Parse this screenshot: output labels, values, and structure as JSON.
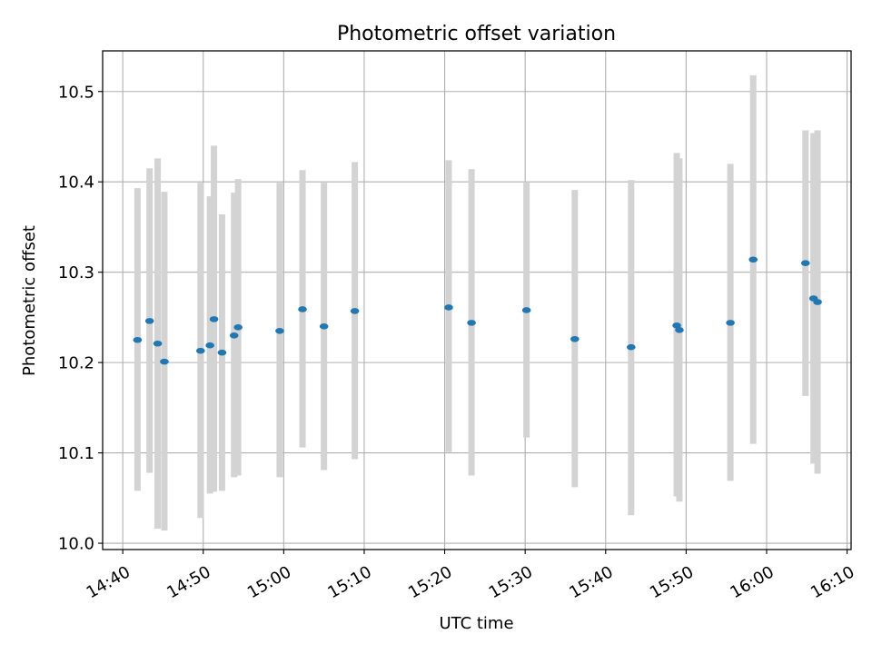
{
  "chart_data": {
    "type": "scatter",
    "title": "Photometric offset variation",
    "xlabel": "UTC time",
    "ylabel": "Photometric offset",
    "x_ticks": [
      "14:40",
      "14:50",
      "15:00",
      "15:10",
      "15:20",
      "15:30",
      "15:40",
      "15:50",
      "16:00",
      "16:10"
    ],
    "y_ticks": [
      "10.0",
      "10.1",
      "10.2",
      "10.3",
      "10.4",
      "10.5"
    ],
    "xlim": [
      "14:37:30",
      "16:10:30"
    ],
    "ylim": [
      9.993,
      10.545
    ],
    "grid": true,
    "marker_color": "#1f77b4",
    "errorbar_color": "#d3d3d3",
    "points": [
      {
        "x": "14:41:50",
        "y": 10.225,
        "lo": 10.058,
        "hi": 10.393
      },
      {
        "x": "14:43:20",
        "y": 10.246,
        "lo": 10.078,
        "hi": 10.415
      },
      {
        "x": "14:44:20",
        "y": 10.221,
        "lo": 10.016,
        "hi": 10.426
      },
      {
        "x": "14:45:10",
        "y": 10.201,
        "lo": 10.014,
        "hi": 10.389
      },
      {
        "x": "14:49:40",
        "y": 10.213,
        "lo": 10.028,
        "hi": 10.399
      },
      {
        "x": "14:50:50",
        "y": 10.219,
        "lo": 10.055,
        "hi": 10.384
      },
      {
        "x": "14:51:20",
        "y": 10.248,
        "lo": 10.057,
        "hi": 10.44
      },
      {
        "x": "14:52:20",
        "y": 10.211,
        "lo": 10.058,
        "hi": 10.364
      },
      {
        "x": "14:53:50",
        "y": 10.23,
        "lo": 10.073,
        "hi": 10.388
      },
      {
        "x": "14:54:20",
        "y": 10.239,
        "lo": 10.075,
        "hi": 10.403
      },
      {
        "x": "14:59:30",
        "y": 10.235,
        "lo": 10.073,
        "hi": 10.399
      },
      {
        "x": "15:02:20",
        "y": 10.259,
        "lo": 10.106,
        "hi": 10.413
      },
      {
        "x": "15:05:00",
        "y": 10.24,
        "lo": 10.081,
        "hi": 10.399
      },
      {
        "x": "15:08:50",
        "y": 10.257,
        "lo": 10.093,
        "hi": 10.422
      },
      {
        "x": "15:20:30",
        "y": 10.261,
        "lo": 10.101,
        "hi": 10.424
      },
      {
        "x": "15:23:20",
        "y": 10.244,
        "lo": 10.075,
        "hi": 10.414
      },
      {
        "x": "15:30:10",
        "y": 10.258,
        "lo": 10.117,
        "hi": 10.4
      },
      {
        "x": "15:36:10",
        "y": 10.226,
        "lo": 10.062,
        "hi": 10.391
      },
      {
        "x": "15:43:10",
        "y": 10.217,
        "lo": 10.031,
        "hi": 10.402
      },
      {
        "x": "15:48:50",
        "y": 10.241,
        "lo": 10.052,
        "hi": 10.432
      },
      {
        "x": "15:49:10",
        "y": 10.236,
        "lo": 10.046,
        "hi": 10.426
      },
      {
        "x": "15:55:30",
        "y": 10.244,
        "lo": 10.069,
        "hi": 10.42
      },
      {
        "x": "15:58:20",
        "y": 10.314,
        "lo": 10.11,
        "hi": 10.518
      },
      {
        "x": "16:04:50",
        "y": 10.31,
        "lo": 10.163,
        "hi": 10.457
      },
      {
        "x": "16:05:50",
        "y": 10.271,
        "lo": 10.088,
        "hi": 10.454
      },
      {
        "x": "16:06:20",
        "y": 10.267,
        "lo": 10.077,
        "hi": 10.457
      }
    ]
  }
}
